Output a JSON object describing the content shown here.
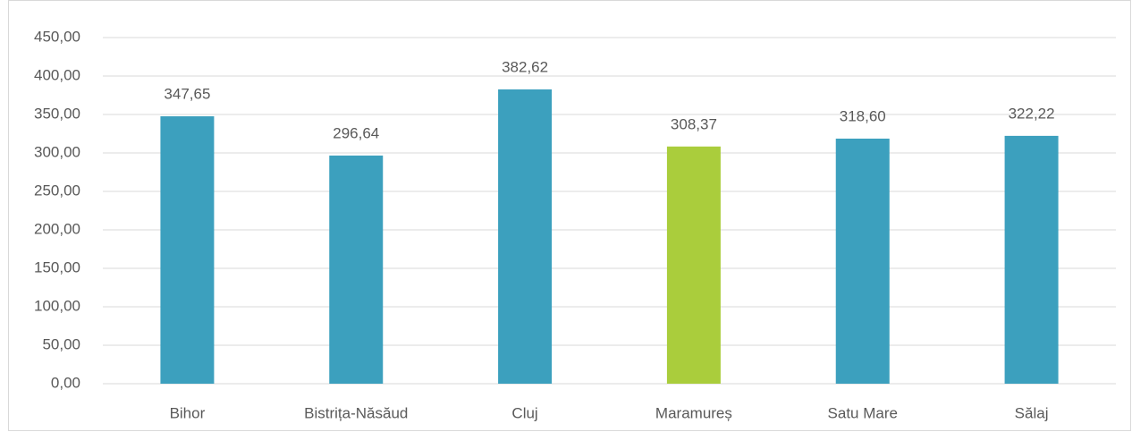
{
  "chart_data": {
    "type": "bar",
    "categories": [
      "Bihor",
      "Bistrița-Năsăud",
      "Cluj",
      "Maramureș",
      "Satu Mare",
      "Sălaj"
    ],
    "values": [
      347.65,
      296.64,
      382.62,
      308.37,
      318.6,
      322.22
    ],
    "value_labels": [
      "347,65",
      "296,64",
      "382,62",
      "308,37",
      "318,60",
      "322,22"
    ],
    "colors": [
      "#3ca0be",
      "#3ca0be",
      "#3ca0be",
      "#aacd3c",
      "#3ca0be",
      "#3ca0be"
    ],
    "ylim": [
      0,
      450
    ],
    "yticks": [
      {
        "value": 0,
        "label": "0,00"
      },
      {
        "value": 50,
        "label": "50,00"
      },
      {
        "value": 100,
        "label": "100,00"
      },
      {
        "value": 150,
        "label": "150,00"
      },
      {
        "value": 200,
        "label": "200,00"
      },
      {
        "value": 250,
        "label": "250,00"
      },
      {
        "value": 300,
        "label": "300,00"
      },
      {
        "value": 350,
        "label": "350,00"
      },
      {
        "value": 400,
        "label": "400,00"
      },
      {
        "value": 450,
        "label": "450,00"
      }
    ],
    "grid": true
  }
}
